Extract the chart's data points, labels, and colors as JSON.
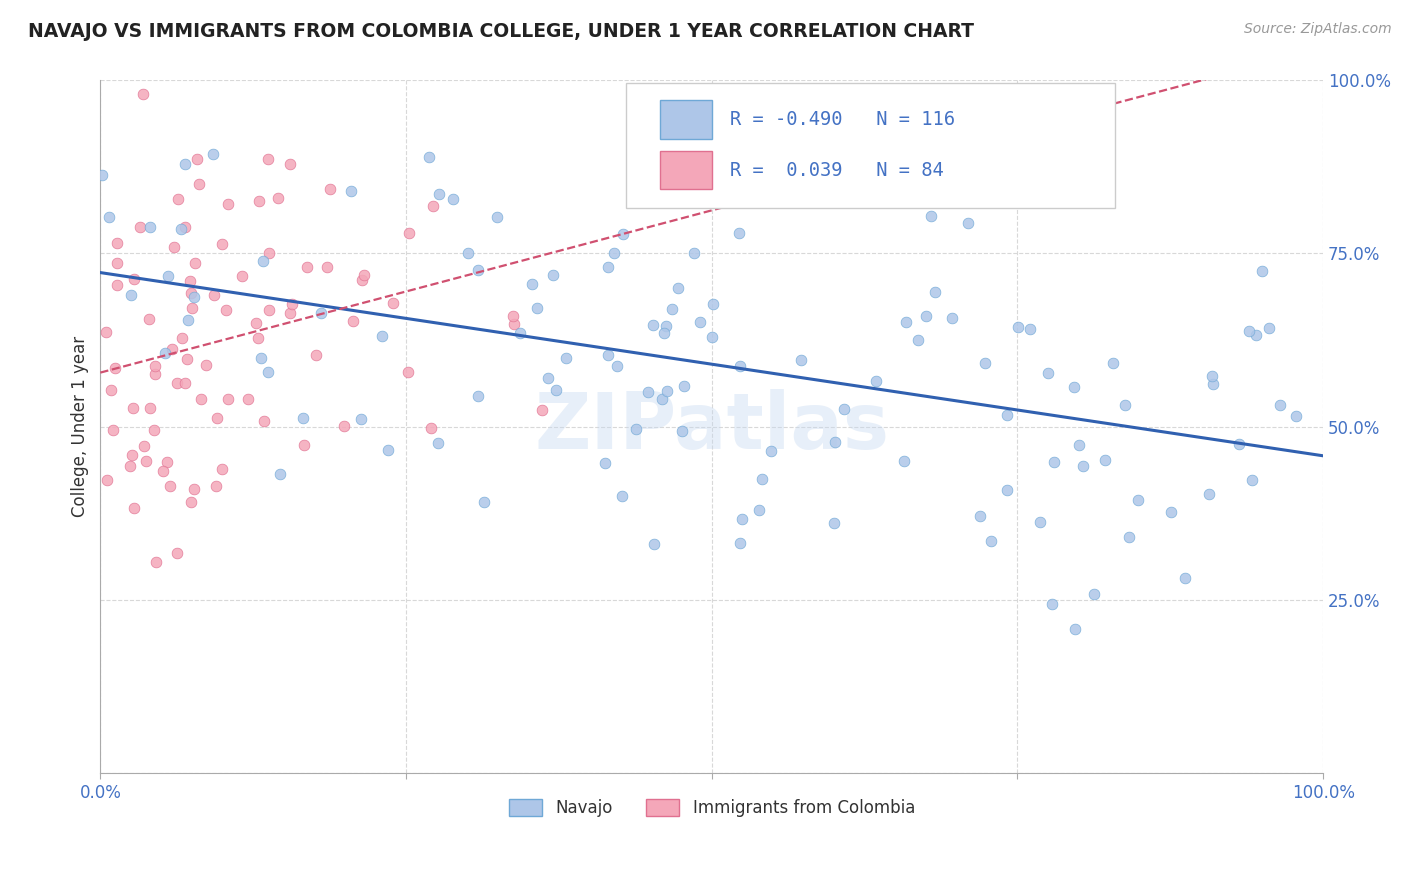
{
  "title": "NAVAJO VS IMMIGRANTS FROM COLOMBIA COLLEGE, UNDER 1 YEAR CORRELATION CHART",
  "source": "Source: ZipAtlas.com",
  "ylabel": "College, Under 1 year",
  "xlim": [
    0,
    1
  ],
  "ylim": [
    0,
    1
  ],
  "navajo_color": "#aec6e8",
  "colombia_color": "#f4a7b9",
  "navajo_edge": "#6fa8d6",
  "colombia_edge": "#e07090",
  "navajo_R": -0.49,
  "navajo_N": 116,
  "colombia_R": 0.039,
  "colombia_N": 84,
  "line_navajo_color": "#3060b0",
  "line_colombia_color": "#d05070",
  "watermark": "ZIPatlas",
  "legend_navajo": "Navajo",
  "legend_colombia": "Immigrants from Colombia",
  "background_color": "#ffffff",
  "grid_color": "#d8d8d8",
  "title_color": "#222222",
  "tick_color": "#4472c4"
}
